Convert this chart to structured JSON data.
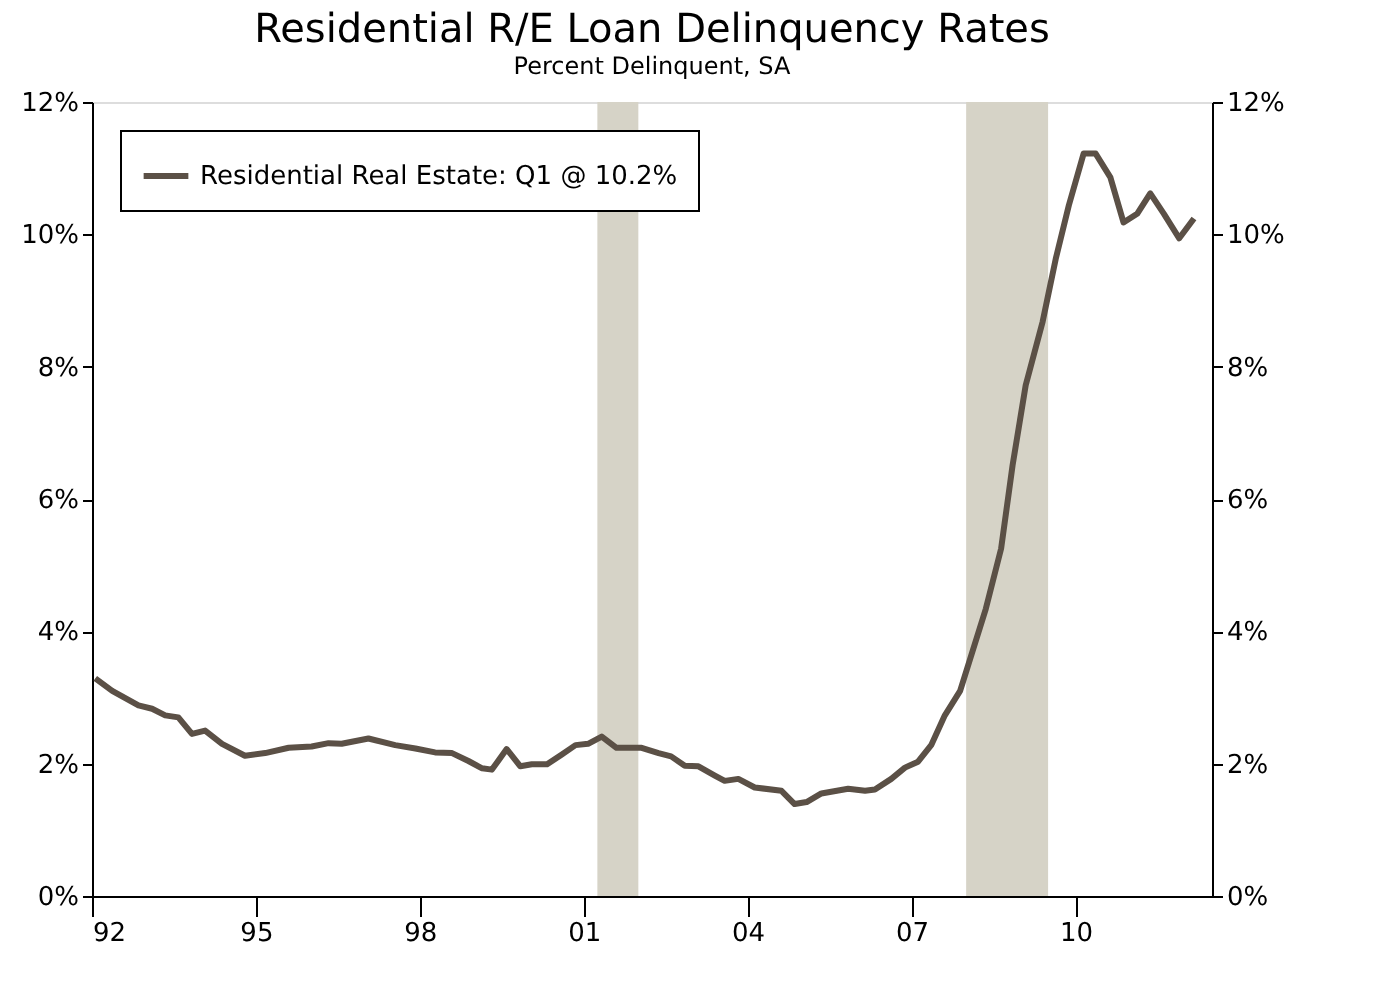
{
  "chart_data": {
    "type": "line",
    "title": "Residential R/E Loan Delinquency Rates",
    "subtitle": "Percent Delinquent, SA",
    "series": [
      {
        "name": "Residential Real Estate: Q1 @ 10.2%",
        "color": "#5b5046",
        "x": [
          1992.06,
          1992.37,
          1992.85,
          1993.1,
          1993.34,
          1993.58,
          1993.83,
          1994.07,
          1994.38,
          1994.8,
          1995.17,
          1995.6,
          1996.02,
          1996.33,
          1996.57,
          1997.06,
          1997.55,
          1997.92,
          1998.28,
          1998.59,
          1998.89,
          1999.14,
          1999.32,
          1999.59,
          1999.84,
          2000.05,
          2000.33,
          2000.6,
          2000.85,
          2001.08,
          2001.33,
          2001.6,
          2002.06,
          2002.37,
          2002.6,
          2002.85,
          2003.1,
          2003.4,
          2003.58,
          2003.83,
          2004.13,
          2004.62,
          2004.86,
          2005.08,
          2005.35,
          2005.84,
          2006.15,
          2006.33,
          2006.63,
          2006.88,
          2007.12,
          2007.36,
          2007.61,
          2007.89,
          2008.36,
          2008.64,
          2008.85,
          2009.09,
          2009.4,
          2009.64,
          2009.88,
          2010.15,
          2010.37,
          2010.64,
          2010.88,
          2011.13,
          2011.37,
          2011.62,
          2011.9,
          2012.17
        ],
        "values": [
          3.29,
          3.1,
          2.88,
          2.83,
          2.73,
          2.7,
          2.45,
          2.5,
          2.3,
          2.12,
          2.16,
          2.24,
          2.26,
          2.31,
          2.3,
          2.38,
          2.28,
          2.23,
          2.17,
          2.16,
          2.04,
          1.93,
          1.91,
          2.22,
          1.96,
          1.99,
          1.99,
          2.14,
          2.28,
          2.3,
          2.41,
          2.24,
          2.24,
          2.16,
          2.11,
          1.97,
          1.96,
          1.82,
          1.74,
          1.77,
          1.64,
          1.59,
          1.39,
          1.42,
          1.55,
          1.62,
          1.59,
          1.61,
          1.77,
          1.94,
          2.03,
          2.28,
          2.73,
          3.1,
          4.34,
          5.25,
          6.51,
          7.72,
          8.68,
          9.63,
          10.44,
          11.22,
          11.22,
          10.86,
          10.18,
          10.31,
          10.62,
          10.31,
          9.94,
          10.24
        ]
      }
    ],
    "xlim": [
      1992,
      2012.5
    ],
    "xticks": [
      {
        "value": 1992,
        "label": "92"
      },
      {
        "value": 1995,
        "label": "95"
      },
      {
        "value": 1998,
        "label": "98"
      },
      {
        "value": 2001,
        "label": "01"
      },
      {
        "value": 2004,
        "label": "04"
      },
      {
        "value": 2007,
        "label": "07"
      },
      {
        "value": 2010,
        "label": "10"
      }
    ],
    "ylim": [
      0,
      12
    ],
    "yticks": [
      {
        "value": 0,
        "label": "0%"
      },
      {
        "value": 2,
        "label": "2%"
      },
      {
        "value": 4,
        "label": "4%"
      },
      {
        "value": 6,
        "label": "6%"
      },
      {
        "value": 8,
        "label": "8%"
      },
      {
        "value": 10,
        "label": "10%"
      },
      {
        "value": 12,
        "label": "12%"
      }
    ],
    "y2lim": [
      0,
      12
    ],
    "y2ticks": [
      {
        "value": 0,
        "label": "0%"
      },
      {
        "value": 2,
        "label": "2%"
      },
      {
        "value": 4,
        "label": "4%"
      },
      {
        "value": 6,
        "label": "6%"
      },
      {
        "value": 8,
        "label": "8%"
      },
      {
        "value": 10,
        "label": "10%"
      },
      {
        "value": 12,
        "label": "12%"
      }
    ],
    "bands": [
      {
        "axis": "x",
        "from": 2001.25,
        "to": 2002.0,
        "color": "#d6d3c7"
      },
      {
        "axis": "x",
        "from": 2008.0,
        "to": 2009.5,
        "color": "#d6d3c7"
      }
    ],
    "grid": false,
    "legend": "top left",
    "marker": "none",
    "line_style": "solid"
  }
}
